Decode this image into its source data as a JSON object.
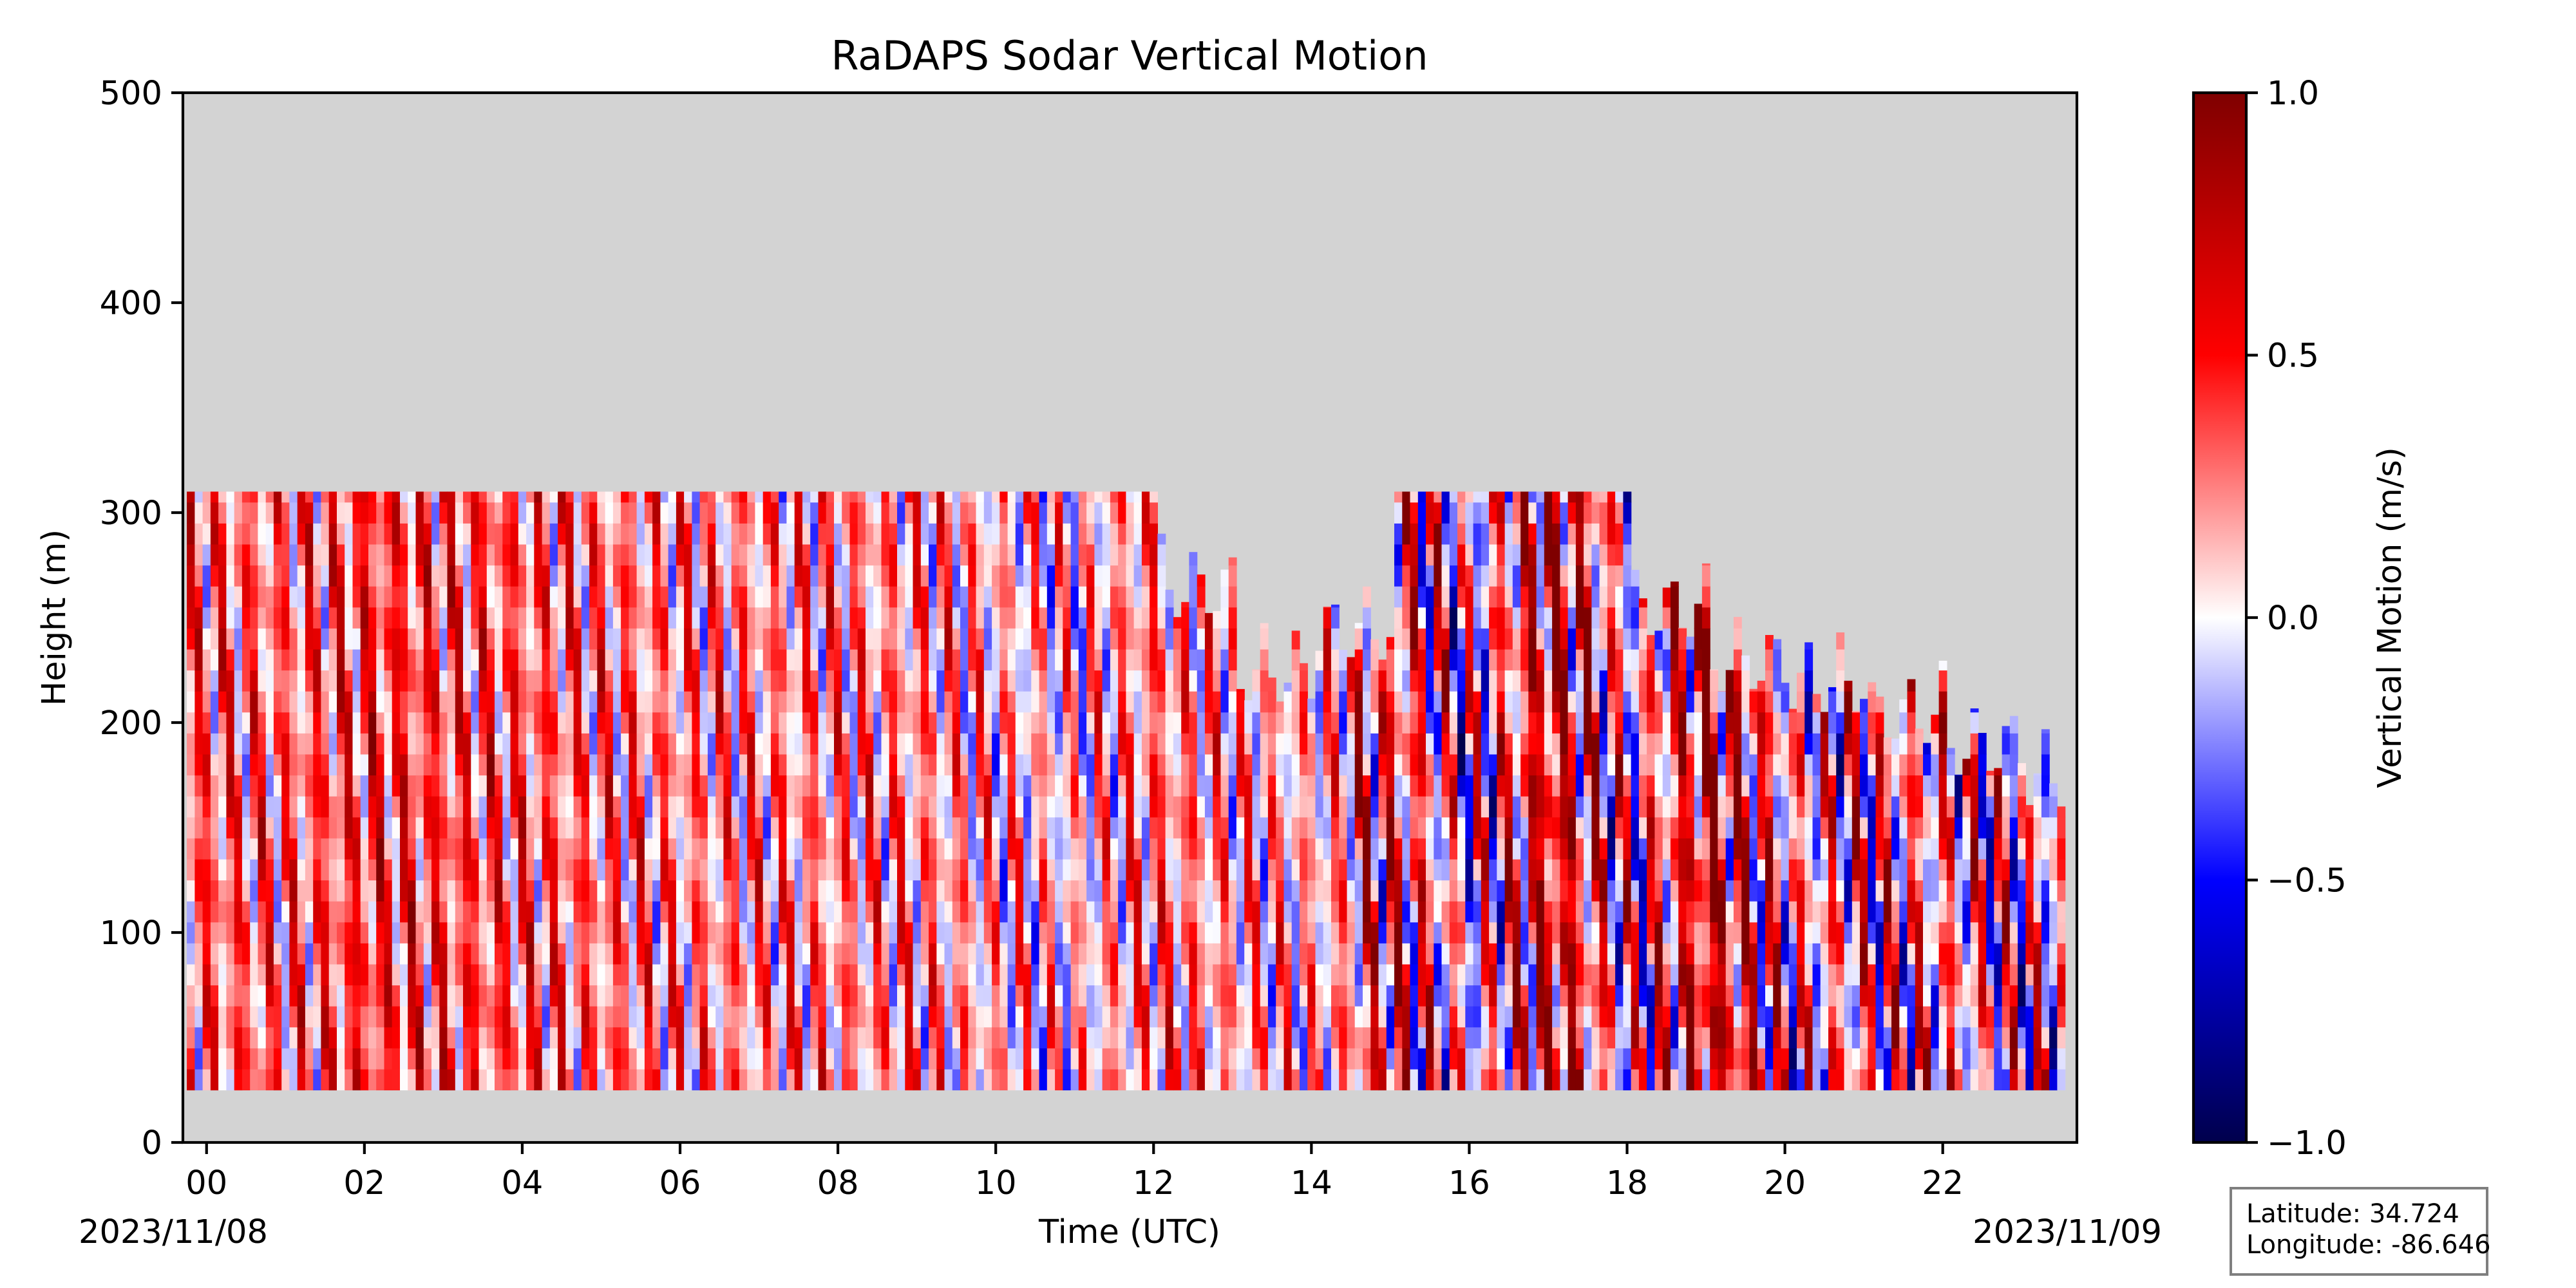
{
  "chart_data": {
    "type": "heatmap",
    "title": "RaDAPS Sodar Vertical Motion",
    "xlabel": "Time (UTC)",
    "ylabel": "Height (m)",
    "x_ticks": [
      "00",
      "02",
      "04",
      "06",
      "08",
      "10",
      "12",
      "14",
      "16",
      "18",
      "20",
      "22"
    ],
    "x_tick_hours": [
      0,
      2,
      4,
      6,
      8,
      10,
      12,
      14,
      16,
      18,
      20,
      22
    ],
    "xlim_hours": [
      -0.3,
      23.7
    ],
    "date_start": "2023/11/08",
    "date_end": "2023/11/09",
    "y_ticks": [
      0,
      100,
      200,
      300,
      400,
      500
    ],
    "ylim": [
      0,
      500
    ],
    "data_height_range_m": [
      25,
      310
    ],
    "missing_color": "#d3d3d3",
    "colorbar": {
      "label": "Vertical Motion (m/s)",
      "ticks": [
        "1.0",
        "0.5",
        "0.0",
        "−0.5",
        "−1.0"
      ],
      "range": [
        -1.0,
        1.0
      ],
      "colormap": "seismic",
      "colors": [
        "#00004c",
        "#0000ff",
        "#ffffff",
        "#ff0000",
        "#7f0000"
      ]
    },
    "series": [
      {
        "hour": 0.0,
        "mean": 0.3,
        "top": 310
      },
      {
        "hour": 1.0,
        "mean": 0.25,
        "top": 310
      },
      {
        "hour": 2.0,
        "mean": 0.4,
        "top": 310
      },
      {
        "hour": 3.0,
        "mean": 0.35,
        "top": 310
      },
      {
        "hour": 4.0,
        "mean": 0.3,
        "top": 310
      },
      {
        "hour": 5.0,
        "mean": 0.25,
        "top": 310
      },
      {
        "hour": 6.0,
        "mean": 0.2,
        "top": 310
      },
      {
        "hour": 7.0,
        "mean": 0.2,
        "top": 310
      },
      {
        "hour": 8.0,
        "mean": 0.2,
        "top": 310
      },
      {
        "hour": 9.0,
        "mean": 0.2,
        "top": 310
      },
      {
        "hour": 10.0,
        "mean": 0.1,
        "top": 310
      },
      {
        "hour": 11.0,
        "mean": 0.05,
        "top": 310
      },
      {
        "hour": 12.0,
        "mean": 0.25,
        "top": 310
      },
      {
        "hour": 13.0,
        "mean": 0.15,
        "top": 270
      },
      {
        "hour": 14.0,
        "mean": 0.1,
        "top": 230
      },
      {
        "hour": 15.0,
        "mean": 0.35,
        "top": 310
      },
      {
        "hour": 16.0,
        "mean": -0.05,
        "top": 310
      },
      {
        "hour": 17.0,
        "mean": 0.6,
        "top": 310
      },
      {
        "hour": 18.0,
        "mean": 0.0,
        "top": 310
      },
      {
        "hour": 19.0,
        "mean": 0.6,
        "top": 250
      },
      {
        "hour": 20.0,
        "mean": 0.1,
        "top": 260
      },
      {
        "hour": 21.0,
        "mean": 0.15,
        "top": 230
      },
      {
        "hour": 22.0,
        "mean": 0.15,
        "top": 230
      },
      {
        "hour": 23.0,
        "mean": 0.05,
        "top": 200
      }
    ]
  },
  "info_box": {
    "latitude": "Latitude: 34.724",
    "longitude": "Longitude: -86.646"
  }
}
